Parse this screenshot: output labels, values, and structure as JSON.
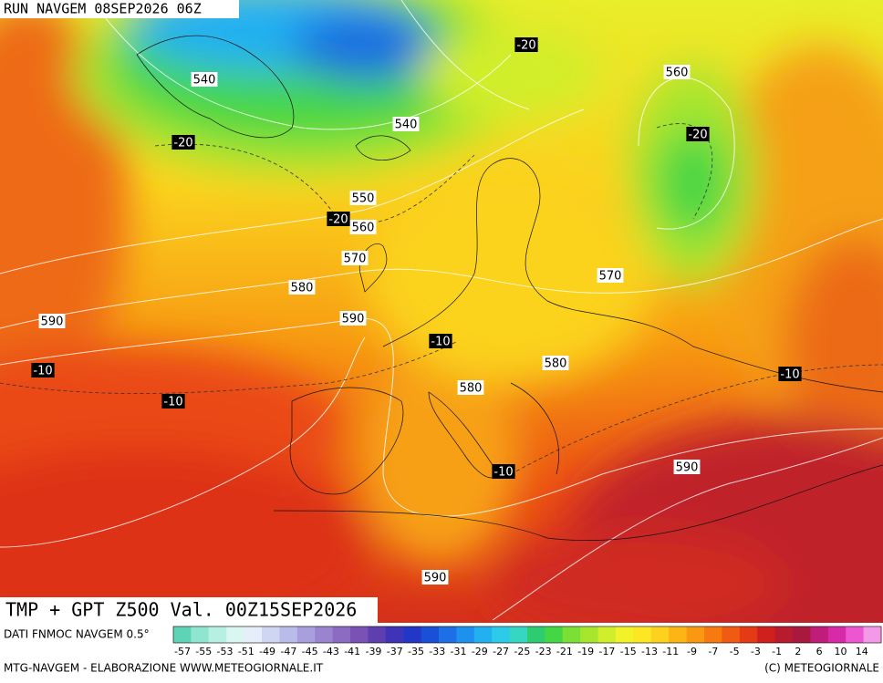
{
  "header": {
    "title": "RUN NAVGEM 08SEP2026 06Z"
  },
  "map": {
    "height_labels": [
      540,
      540,
      550,
      560,
      570,
      580,
      590,
      590,
      570,
      580,
      580,
      590,
      590,
      560
    ],
    "temperature_labels": [
      -20,
      -20,
      -20,
      -20,
      -10,
      -10,
      -10,
      -10,
      -10
    ]
  },
  "product": {
    "title": "TMP + GPT Z500 Val. 00Z15SEP2026"
  },
  "legend": {
    "source": "DATI FNMOC NAVGEM 0.5°",
    "labels": [
      -57,
      -55,
      -53,
      -51,
      -49,
      -47,
      -45,
      -43,
      -41,
      -39,
      -37,
      -35,
      -33,
      -31,
      -29,
      -27,
      -25,
      -23,
      -21,
      -19,
      -17,
      -15,
      -13,
      -11,
      -9,
      -7,
      -5,
      -3,
      -1,
      2,
      6,
      10,
      14
    ],
    "colors": [
      "#5fd3b5",
      "#8fe6cf",
      "#b7f0e3",
      "#d9f6f0",
      "#e6eef9",
      "#cfd6f1",
      "#b9bce8",
      "#a99fdc",
      "#9b84cf",
      "#8c6bc2",
      "#7a52b5",
      "#5f3fb0",
      "#3f33b8",
      "#2236c8",
      "#1a4fd8",
      "#1c6fe6",
      "#1e90ee",
      "#22b0f0",
      "#2ccbe8",
      "#35d7c2",
      "#2ecc71",
      "#45d645",
      "#7ce034",
      "#a8e62e",
      "#d1ee2c",
      "#f2f22a",
      "#fde725",
      "#fdd21e",
      "#fdb515",
      "#fb9812",
      "#f77a10",
      "#f05a12",
      "#e43a16",
      "#d0201e",
      "#b81a2e",
      "#a8183f",
      "#c01c7a",
      "#d82aa8",
      "#ee55d0",
      "#f29ae8"
    ]
  },
  "footer": {
    "left": "MTG-NAVGEM - ELABORAZIONE WWW.METEOGIORNALE.IT",
    "right": "(C) METEOGIORNALE"
  }
}
